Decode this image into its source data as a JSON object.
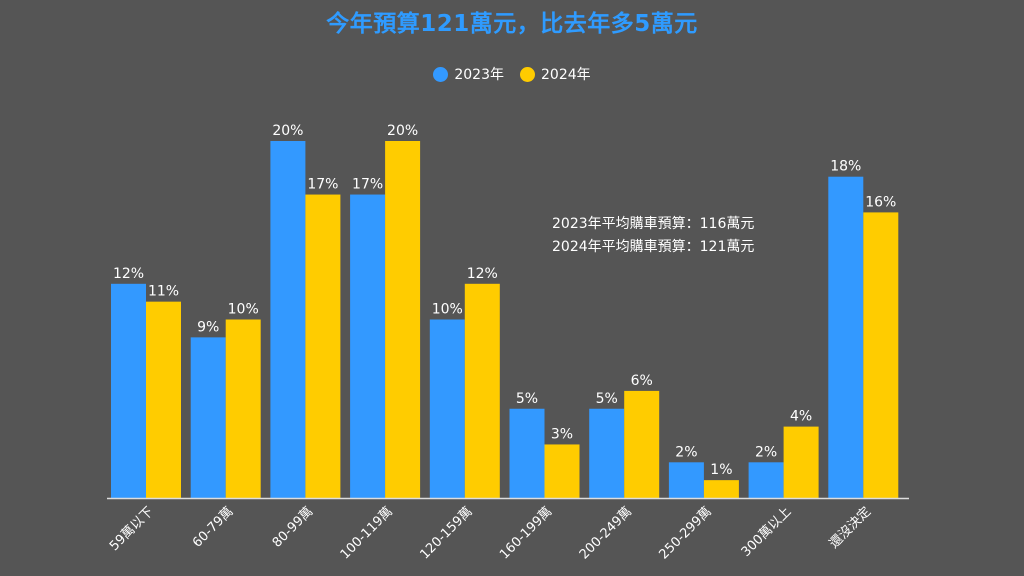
{
  "chart_data": {
    "type": "bar",
    "title": "今年預算121萬元，比去年多5萬元",
    "categories": [
      "59萬以下",
      "60-79萬",
      "80-99萬",
      "100-119萬",
      "120-159萬",
      "160-199萬",
      "200-249萬",
      "250-299萬",
      "300萬以上",
      "還沒決定"
    ],
    "series": [
      {
        "name": "2023年",
        "color": "#3399ff",
        "values": [
          12,
          9,
          20,
          17,
          10,
          5,
          5,
          2,
          2,
          18
        ],
        "labels": [
          "12%",
          "9%",
          "20%",
          "17%",
          "10%",
          "5%",
          "5%",
          "2%",
          "2%",
          "18%"
        ]
      },
      {
        "name": "2024年",
        "color": "#ffcc00",
        "values": [
          11,
          10,
          17,
          20,
          12,
          3,
          6,
          1,
          4,
          16
        ],
        "labels": [
          "11%",
          "10%",
          "17%",
          "20%",
          "12%",
          "3%",
          "6%",
          "1%",
          "4%",
          "16%"
        ]
      }
    ],
    "xlabel": "",
    "ylabel": "",
    "ylim": [
      0,
      20
    ],
    "grid": false,
    "legend_position": "top-center",
    "annotations": [
      "2023年平均購車預算：116萬元",
      "2024年平均購車預算：121萬元"
    ]
  },
  "colors": {
    "background": "#555555",
    "title": "#2f9bff",
    "text": "#ffffff",
    "axis": "#dddddd"
  }
}
